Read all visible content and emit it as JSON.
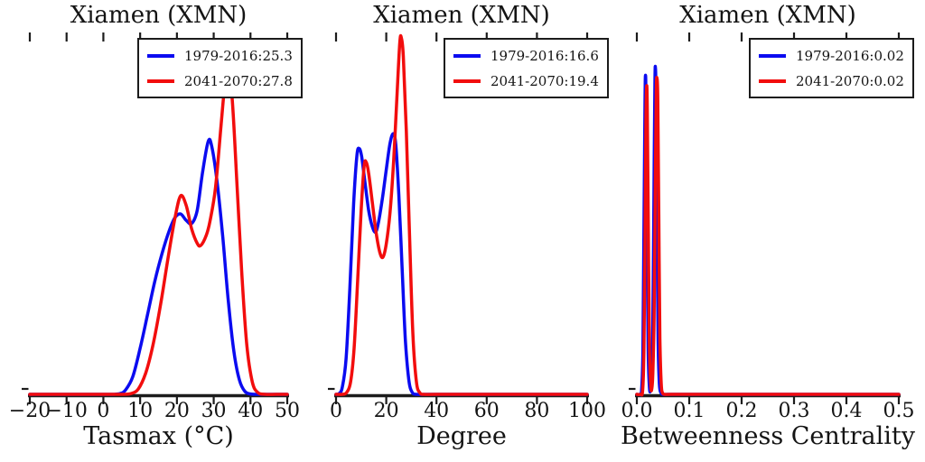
{
  "figure": {
    "background": "#ffffff",
    "text_color": "#141414",
    "spine_color": "#1c1c1c"
  },
  "chart_data": [
    {
      "type": "line",
      "subtype": "kde-density",
      "title": "Xiamen (XMN)",
      "xlabel": "Tasmax (°C)",
      "xlim": [
        -20,
        50
      ],
      "xtick_values": [
        -20,
        -10,
        0,
        10,
        20,
        30,
        40,
        50
      ],
      "xtick_labels": [
        "−20",
        "−10",
        "0",
        "10",
        "20",
        "30",
        "40",
        "50"
      ],
      "yticks_shown": false,
      "grid": false,
      "legend_position": "upper right",
      "y_scale": "relative density, 0 = baseline, 1 = plot top",
      "series": [
        {
          "name": "1979-2016",
          "legend_label": "1979-2016:25.3",
          "color": "#0b0bf0",
          "points": [
            [
              -20,
              0
            ],
            [
              -12,
              0
            ],
            [
              -4,
              0
            ],
            [
              2,
              0
            ],
            [
              4.5,
              0.002
            ],
            [
              6,
              0.012
            ],
            [
              8,
              0.05
            ],
            [
              10,
              0.13
            ],
            [
              12,
              0.225
            ],
            [
              14,
              0.32
            ],
            [
              16,
              0.4
            ],
            [
              18,
              0.465
            ],
            [
              19.5,
              0.5
            ],
            [
              21,
              0.51
            ],
            [
              22.5,
              0.492
            ],
            [
              24,
              0.483
            ],
            [
              25.5,
              0.52
            ],
            [
              27,
              0.63
            ],
            [
              28.5,
              0.715
            ],
            [
              29.5,
              0.7
            ],
            [
              31,
              0.595
            ],
            [
              32.5,
              0.44
            ],
            [
              34,
              0.26
            ],
            [
              35.5,
              0.12
            ],
            [
              37,
              0.04
            ],
            [
              38.5,
              0.008
            ],
            [
              40,
              0.001
            ],
            [
              42,
              0
            ],
            [
              46,
              0
            ],
            [
              50,
              0
            ]
          ]
        },
        {
          "name": "2041-2070",
          "legend_label": "2041-2070:27.8",
          "color": "#f20d0d",
          "points": [
            [
              -20,
              0
            ],
            [
              -10,
              0
            ],
            [
              0,
              0
            ],
            [
              5,
              0
            ],
            [
              7.5,
              0.002
            ],
            [
              9.5,
              0.015
            ],
            [
              11.5,
              0.06
            ],
            [
              13.5,
              0.14
            ],
            [
              15.5,
              0.25
            ],
            [
              17.5,
              0.38
            ],
            [
              19.5,
              0.5
            ],
            [
              21,
              0.561
            ],
            [
              22.5,
              0.535
            ],
            [
              24,
              0.468
            ],
            [
              25.5,
              0.427
            ],
            [
              26.5,
              0.421
            ],
            [
              28,
              0.45
            ],
            [
              29,
              0.49
            ],
            [
              30.5,
              0.585
            ],
            [
              32,
              0.76
            ],
            [
              33.2,
              0.895
            ],
            [
              33.9,
              0.916
            ],
            [
              35,
              0.84
            ],
            [
              36.3,
              0.6
            ],
            [
              37.6,
              0.35
            ],
            [
              39,
              0.14
            ],
            [
              40.5,
              0.035
            ],
            [
              42,
              0.005
            ],
            [
              44,
              0
            ],
            [
              47,
              0
            ],
            [
              50,
              0
            ]
          ]
        }
      ]
    },
    {
      "type": "line",
      "subtype": "kde-density",
      "title": "Xiamen (XMN)",
      "xlabel": "Degree",
      "xlim": [
        0,
        100
      ],
      "xtick_values": [
        0,
        20,
        40,
        60,
        80,
        100
      ],
      "xtick_labels": [
        "0",
        "20",
        "40",
        "60",
        "80",
        "100"
      ],
      "yticks_shown": false,
      "grid": false,
      "legend_position": "upper right",
      "y_scale": "relative density, 0 = baseline, 1 = plot top",
      "series": [
        {
          "name": "1979-2016",
          "legend_label": "1979-2016:16.6",
          "color": "#0b0bf0",
          "points": [
            [
              0,
              0
            ],
            [
              1.2,
              0.002
            ],
            [
              2.5,
              0.02
            ],
            [
              4,
              0.1
            ],
            [
              5.5,
              0.3
            ],
            [
              7,
              0.54
            ],
            [
              8.3,
              0.675
            ],
            [
              9.2,
              0.695
            ],
            [
              10.2,
              0.672
            ],
            [
              11.5,
              0.6
            ],
            [
              13,
              0.52
            ],
            [
              14.5,
              0.473
            ],
            [
              15.8,
              0.459
            ],
            [
              17,
              0.49
            ],
            [
              18.5,
              0.555
            ],
            [
              20,
              0.635
            ],
            [
              21.5,
              0.71
            ],
            [
              22.8,
              0.737
            ],
            [
              23.8,
              0.705
            ],
            [
              25,
              0.565
            ],
            [
              26.3,
              0.36
            ],
            [
              27.6,
              0.155
            ],
            [
              29,
              0.04
            ],
            [
              30.3,
              0.006
            ],
            [
              32,
              0
            ],
            [
              36,
              0
            ],
            [
              45,
              0
            ],
            [
              60,
              0
            ],
            [
              80,
              0
            ],
            [
              100,
              0
            ]
          ]
        },
        {
          "name": "2041-2070",
          "legend_label": "2041-2070:19.4",
          "color": "#f20d0d",
          "points": [
            [
              0,
              0
            ],
            [
              2.5,
              0
            ],
            [
              4.2,
              0.005
            ],
            [
              5.8,
              0.035
            ],
            [
              7.2,
              0.13
            ],
            [
              8.6,
              0.32
            ],
            [
              10,
              0.52
            ],
            [
              11.2,
              0.645
            ],
            [
              12,
              0.656
            ],
            [
              13,
              0.625
            ],
            [
              14.5,
              0.54
            ],
            [
              16,
              0.455
            ],
            [
              17.5,
              0.4
            ],
            [
              18.7,
              0.388
            ],
            [
              20,
              0.425
            ],
            [
              21.5,
              0.515
            ],
            [
              23,
              0.665
            ],
            [
              24.3,
              0.85
            ],
            [
              25.4,
              0.995
            ],
            [
              26,
              1.008
            ],
            [
              26.8,
              0.955
            ],
            [
              28,
              0.745
            ],
            [
              29.3,
              0.44
            ],
            [
              30.6,
              0.17
            ],
            [
              32,
              0.035
            ],
            [
              33.4,
              0.004
            ],
            [
              35,
              0
            ],
            [
              40,
              0
            ],
            [
              60,
              0
            ],
            [
              100,
              0
            ]
          ]
        }
      ]
    },
    {
      "type": "line",
      "subtype": "kde-density",
      "title": "Xiamen (XMN)",
      "xlabel": "Betweenness Centrality",
      "xlim": [
        0,
        0.5
      ],
      "xtick_values": [
        0.0,
        0.1,
        0.2,
        0.3,
        0.4,
        0.5
      ],
      "xtick_labels": [
        "0.0",
        "0.1",
        "0.2",
        "0.3",
        "0.4",
        "0.5"
      ],
      "yticks_shown": false,
      "grid": false,
      "legend_position": "upper right",
      "y_scale": "relative density, 0 = baseline, 1 = plot top",
      "series": [
        {
          "name": "1979-2016",
          "legend_label": "1979-2016:0.02",
          "color": "#0b0bf0",
          "points": [
            [
              0,
              0
            ],
            [
              0.005,
              0
            ],
            [
              0.009,
              0.01
            ],
            [
              0.0115,
              0.12
            ],
            [
              0.0135,
              0.45
            ],
            [
              0.0155,
              0.82
            ],
            [
              0.0165,
              0.902
            ],
            [
              0.0175,
              0.82
            ],
            [
              0.0195,
              0.45
            ],
            [
              0.0215,
              0.13
            ],
            [
              0.024,
              0.02
            ],
            [
              0.026,
              0.012
            ],
            [
              0.028,
              0.05
            ],
            [
              0.0305,
              0.2
            ],
            [
              0.0325,
              0.55
            ],
            [
              0.0345,
              0.88
            ],
            [
              0.0355,
              0.922
            ],
            [
              0.0365,
              0.85
            ],
            [
              0.0385,
              0.5
            ],
            [
              0.0405,
              0.16
            ],
            [
              0.043,
              0.03
            ],
            [
              0.046,
              0.004
            ],
            [
              0.05,
              0
            ],
            [
              0.06,
              0
            ],
            [
              0.1,
              0
            ],
            [
              0.15,
              0
            ],
            [
              0.25,
              0
            ],
            [
              0.35,
              0
            ],
            [
              0.45,
              0
            ],
            [
              0.5,
              0
            ]
          ]
        },
        {
          "name": "2041-2070",
          "legend_label": "2041-2070:0.02",
          "color": "#f20d0d",
          "points": [
            [
              0,
              0
            ],
            [
              0.007,
              0
            ],
            [
              0.011,
              0.01
            ],
            [
              0.0135,
              0.12
            ],
            [
              0.0155,
              0.42
            ],
            [
              0.0175,
              0.78
            ],
            [
              0.0188,
              0.872
            ],
            [
              0.02,
              0.8
            ],
            [
              0.022,
              0.45
            ],
            [
              0.024,
              0.14
            ],
            [
              0.0265,
              0.025
            ],
            [
              0.0285,
              0.015
            ],
            [
              0.0305,
              0.06
            ],
            [
              0.033,
              0.22
            ],
            [
              0.035,
              0.55
            ],
            [
              0.037,
              0.85
            ],
            [
              0.0385,
              0.893
            ],
            [
              0.04,
              0.83
            ],
            [
              0.042,
              0.48
            ],
            [
              0.044,
              0.16
            ],
            [
              0.0465,
              0.03
            ],
            [
              0.049,
              0.004
            ],
            [
              0.053,
              0
            ],
            [
              0.065,
              0
            ],
            [
              0.12,
              0
            ],
            [
              0.2,
              0
            ],
            [
              0.3,
              0
            ],
            [
              0.4,
              0
            ],
            [
              0.5,
              0
            ]
          ]
        }
      ]
    }
  ]
}
